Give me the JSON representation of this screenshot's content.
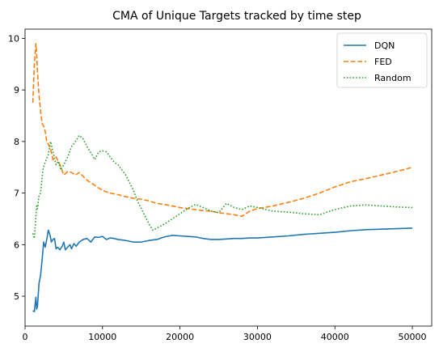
{
  "chart_data": {
    "type": "line",
    "title": "CMA of Unique Targets tracked by time step",
    "xlabel": "",
    "ylabel": "",
    "xlim": [
      0,
      52500
    ],
    "ylim": [
      4.42,
      10.18
    ],
    "xticks": [
      0,
      10000,
      20000,
      30000,
      40000,
      50000
    ],
    "yticks": [
      5,
      6,
      7,
      8,
      9,
      10
    ],
    "xtick_labels": [
      "0",
      "10000",
      "20000",
      "30000",
      "40000",
      "50000"
    ],
    "ytick_labels": [
      "5",
      "6",
      "7",
      "8",
      "9",
      "10"
    ],
    "grid": false,
    "legend_position": "top-right",
    "series": [
      {
        "name": "DQN",
        "color": "#1f77b4",
        "style": "solid",
        "x": [
          1000,
          1200,
          1400,
          1500,
          1600,
          1800,
          2000,
          2200,
          2400,
          2600,
          2800,
          3000,
          3200,
          3400,
          3600,
          3800,
          4000,
          4200,
          4500,
          4800,
          5000,
          5200,
          5500,
          5800,
          6000,
          6300,
          6600,
          7000,
          7500,
          8000,
          8500,
          9000,
          9500,
          10000,
          10500,
          11000,
          11500,
          12000,
          13000,
          14000,
          15000,
          16000,
          17000,
          18000,
          19000,
          20000,
          21000,
          22000,
          23000,
          24000,
          25000,
          26000,
          27000,
          28000,
          29000,
          30000,
          32000,
          34000,
          36000,
          38000,
          40000,
          42000,
          44000,
          46000,
          48000,
          50000
        ],
        "values": [
          4.72,
          4.7,
          4.98,
          4.75,
          4.8,
          5.25,
          5.4,
          5.7,
          6.05,
          5.95,
          6.1,
          6.28,
          6.2,
          6.05,
          6.1,
          6.12,
          5.92,
          5.95,
          5.9,
          5.97,
          6.05,
          5.9,
          5.95,
          6.0,
          5.92,
          6.02,
          5.97,
          6.05,
          6.1,
          6.12,
          6.05,
          6.15,
          6.14,
          6.16,
          6.1,
          6.13,
          6.12,
          6.1,
          6.08,
          6.05,
          6.05,
          6.08,
          6.1,
          6.15,
          6.18,
          6.17,
          6.16,
          6.15,
          6.12,
          6.1,
          6.1,
          6.11,
          6.12,
          6.12,
          6.13,
          6.13,
          6.15,
          6.17,
          6.2,
          6.22,
          6.24,
          6.27,
          6.29,
          6.3,
          6.31,
          6.32
        ]
      },
      {
        "name": "FED",
        "color": "#ff7f0e",
        "style": "dashed",
        "x": [
          1000,
          1200,
          1400,
          1500,
          1600,
          1800,
          2000,
          2200,
          2400,
          2600,
          2800,
          3000,
          3300,
          3600,
          4000,
          4500,
          5000,
          5500,
          6000,
          6500,
          7000,
          8000,
          9000,
          10000,
          11000,
          12000,
          13000,
          14000,
          15000,
          16000,
          17000,
          18000,
          19000,
          20000,
          21000,
          22000,
          23000,
          24000,
          25000,
          26000,
          27000,
          28000,
          29000,
          30000,
          32000,
          34000,
          36000,
          38000,
          40000,
          42000,
          44000,
          46000,
          48000,
          50000
        ],
        "values": [
          8.75,
          9.5,
          9.9,
          9.7,
          9.35,
          8.9,
          8.6,
          8.35,
          8.3,
          8.2,
          8.0,
          7.95,
          7.85,
          7.65,
          7.7,
          7.55,
          7.35,
          7.42,
          7.4,
          7.35,
          7.4,
          7.25,
          7.15,
          7.05,
          7.0,
          6.97,
          6.93,
          6.9,
          6.88,
          6.85,
          6.8,
          6.78,
          6.75,
          6.72,
          6.7,
          6.68,
          6.66,
          6.65,
          6.62,
          6.6,
          6.58,
          6.55,
          6.65,
          6.7,
          6.75,
          6.82,
          6.9,
          7.0,
          7.12,
          7.22,
          7.28,
          7.35,
          7.42,
          7.5
        ]
      },
      {
        "name": "Random",
        "color": "#2ca02c",
        "style": "dotted",
        "x": [
          1000,
          1200,
          1400,
          1500,
          1600,
          1800,
          2000,
          2300,
          2600,
          3000,
          3300,
          3600,
          4000,
          4300,
          4600,
          5000,
          5500,
          6000,
          6500,
          7000,
          7500,
          8000,
          8500,
          9000,
          9500,
          10000,
          10500,
          11000,
          11500,
          12000,
          12500,
          13000,
          13500,
          14000,
          14500,
          15000,
          15500,
          16000,
          16500,
          17000,
          18000,
          19000,
          20000,
          21000,
          22000,
          23000,
          24000,
          25000,
          26000,
          27000,
          28000,
          29000,
          30000,
          32000,
          34000,
          36000,
          38000,
          40000,
          42000,
          44000,
          46000,
          48000,
          50000
        ],
        "values": [
          6.22,
          6.12,
          6.55,
          6.75,
          6.7,
          6.95,
          7.0,
          7.45,
          7.6,
          7.75,
          8.0,
          7.8,
          7.55,
          7.62,
          7.45,
          7.55,
          7.7,
          7.9,
          8.0,
          8.12,
          8.05,
          7.9,
          7.78,
          7.65,
          7.8,
          7.82,
          7.8,
          7.7,
          7.6,
          7.55,
          7.45,
          7.35,
          7.2,
          7.05,
          6.85,
          6.7,
          6.55,
          6.4,
          6.28,
          6.32,
          6.4,
          6.5,
          6.6,
          6.7,
          6.78,
          6.72,
          6.65,
          6.62,
          6.8,
          6.72,
          6.68,
          6.75,
          6.72,
          6.65,
          6.63,
          6.6,
          6.58,
          6.68,
          6.75,
          6.77,
          6.75,
          6.73,
          6.72
        ]
      }
    ]
  }
}
